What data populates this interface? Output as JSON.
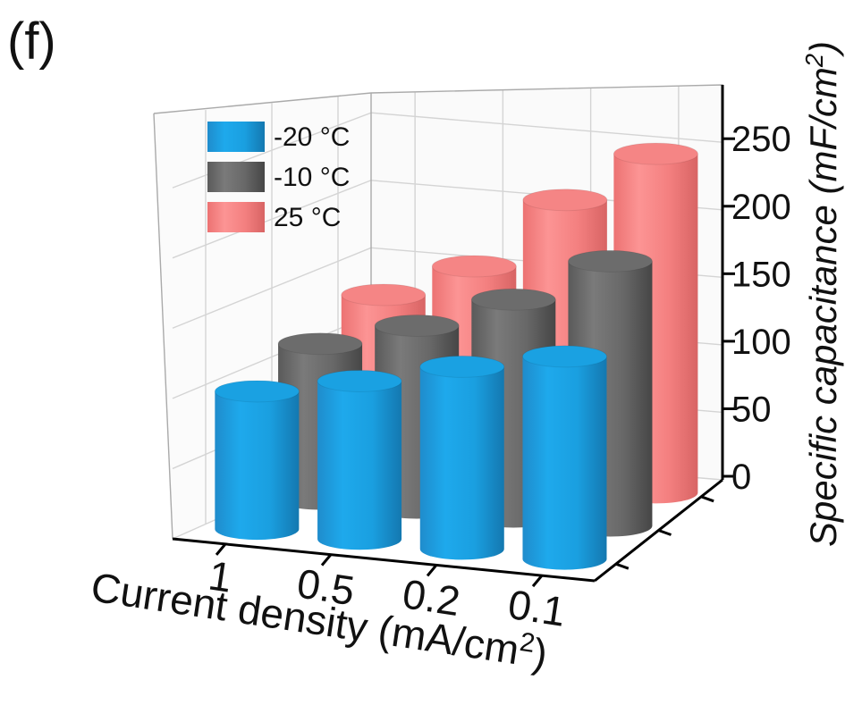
{
  "panel_label": "(f)",
  "chart_data": {
    "type": "bar",
    "subtype": "3d-cylinder",
    "categories": [
      "1",
      "0.5",
      "0.2",
      "0.1"
    ],
    "series": [
      {
        "name": "-20 °C",
        "values": [
          102,
          117,
          135,
          150
        ],
        "color": "#1a9fe0"
      },
      {
        "name": "-10 °C",
        "values": [
          115,
          135,
          161,
          196
        ],
        "color": "#686868"
      },
      {
        "name": "25 °C",
        "values": [
          129,
          156,
          211,
          251
        ],
        "color": "#f48080"
      }
    ],
    "xlabel": "Current density (mA/cm²)",
    "ylabel": "Specific capacitance (mF/cm²)",
    "yticks": [
      0,
      50,
      100,
      150,
      200,
      250
    ],
    "ylim": [
      0,
      270
    ],
    "grid": true,
    "legend_position": "top-left"
  }
}
